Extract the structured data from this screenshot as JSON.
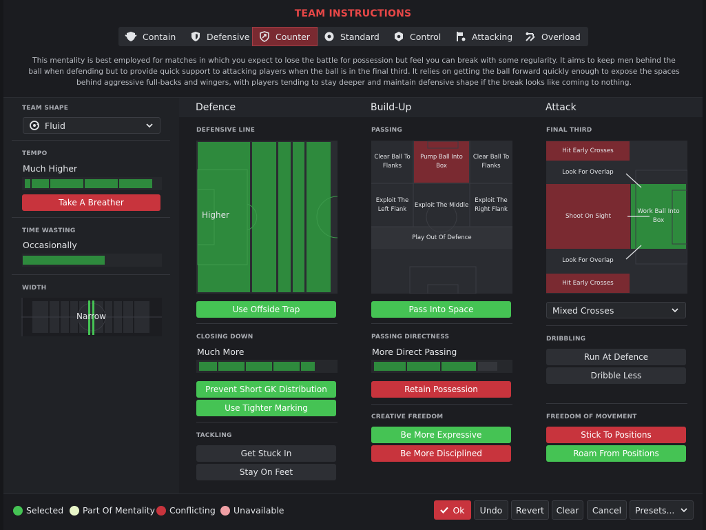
{
  "header": {
    "title": "TEAM INSTRUCTIONS",
    "tabs": [
      "Contain",
      "Defensive",
      "Counter",
      "Standard",
      "Control",
      "Attacking",
      "Overload"
    ],
    "active_tab": "Counter",
    "description": "This mentality is best employed for matches in which you expect to lose the battle for possession but feel you can break with some regularity.  It aims to keep men behind the ball when defending but to provide quick support to attacking players when the ball is in the final third. It relies on getting the ball forward quickly enough to expose the spaces behind aggressive full-backs and wingers, with players tending to stay deeper and maintain defensive shape if the break looks like coming to nothing."
  },
  "left": {
    "team_shape_label": "TEAM SHAPE",
    "team_shape_value": "Fluid",
    "tempo_label": "TEMPO",
    "tempo_value": "Much Higher",
    "tempo_level": 0.95,
    "tempo_button": "Take A Breather",
    "time_wasting_label": "TIME WASTING",
    "time_wasting_value": "Occasionally",
    "time_wasting_level": 0.6,
    "width_label": "WIDTH",
    "width_value": "Narrow"
  },
  "defence": {
    "title": "Defence",
    "defensive_line_label": "DEFENSIVE LINE",
    "defensive_line_value": "Higher",
    "offside_button": "Use Offside Trap",
    "closing_down_label": "CLOSING DOWN",
    "closing_down_value": "Much More",
    "closing_down_level": 0.85,
    "buttons": [
      "Prevent Short GK Distribution",
      "Use Tighter Marking"
    ],
    "tackling_label": "TACKLING",
    "tackling_buttons": [
      "Get Stuck In",
      "Stay On Feet"
    ]
  },
  "buildup": {
    "title": "Build-Up",
    "passing_label": "PASSING",
    "cells": {
      "clear_left": "Clear Ball To Flanks",
      "pump": "Pump Ball Into Box",
      "clear_right": "Clear Ball To Flanks",
      "exploit_left": "Exploit The Left Flank",
      "exploit_middle": "Exploit The Middle",
      "exploit_right": "Exploit The Right Flank",
      "play_out": "Play Out Of Defence"
    },
    "pass_space_button": "Pass Into Space",
    "directness_label": "PASSING DIRECTNESS",
    "directness_value": "More Direct Passing",
    "directness_level": 0.75,
    "retain_button": "Retain Possession",
    "creative_label": "CREATIVE FREEDOM",
    "creative_buttons": [
      "Be More Expressive",
      "Be More Disciplined"
    ]
  },
  "attack": {
    "title": "Attack",
    "final_third_label": "FINAL THIRD",
    "cells": {
      "hit_early_top": "Hit Early Crosses",
      "overlap_top": "Look For Overlap",
      "shoot": "Shoot On Sight",
      "work_ball": "Work Ball Into Box",
      "overlap_bottom": "Look For Overlap",
      "hit_early_bottom": "Hit Early Crosses"
    },
    "crossing_value": "Mixed Crosses",
    "dribbling_label": "DRIBBLING",
    "dribbling_buttons": [
      "Run At Defence",
      "Dribble Less"
    ],
    "freedom_label": "FREEDOM OF MOVEMENT",
    "freedom_buttons": [
      "Stick To Positions",
      "Roam From Positions"
    ]
  },
  "footer": {
    "legend": [
      "Selected",
      "Part Of Mentality",
      "Conflicting",
      "Unavailable"
    ],
    "ok": "Ok",
    "undo": "Undo",
    "revert": "Revert",
    "clear": "Clear",
    "cancel": "Cancel",
    "presets": "Presets..."
  },
  "colors": {
    "accent_red": "#e74747",
    "selected_green": "#45c354",
    "mentality_green": "#e8f5c8",
    "conflicting_red": "#c8343d",
    "unavailable_pink": "#f0a0a5",
    "zone_red": "#7a2a31",
    "zone_green": "#2e8a3d"
  }
}
